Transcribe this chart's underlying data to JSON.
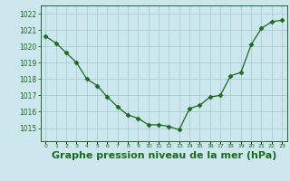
{
  "x": [
    0,
    1,
    2,
    3,
    4,
    5,
    6,
    7,
    8,
    9,
    10,
    11,
    12,
    13,
    14,
    15,
    16,
    17,
    18,
    19,
    20,
    21,
    22,
    23
  ],
  "y": [
    1020.6,
    1020.2,
    1019.6,
    1019.0,
    1018.0,
    1017.6,
    1016.9,
    1016.3,
    1015.8,
    1015.6,
    1015.2,
    1015.2,
    1015.1,
    1014.9,
    1016.2,
    1016.4,
    1016.9,
    1017.0,
    1018.2,
    1018.4,
    1020.1,
    1021.1,
    1021.5,
    1021.6
  ],
  "line_color": "#1a6b1a",
  "marker": "D",
  "marker_size": 2.5,
  "bg_color": "#cce8ee",
  "grid_color": "#aacdd4",
  "title": "Graphe pression niveau de la mer (hPa)",
  "title_fontsize": 8,
  "title_color": "#1a6b1a",
  "tick_color": "#1a6b1a",
  "ylim_min": 1014.2,
  "ylim_max": 1022.5,
  "ytick_values": [
    1015,
    1016,
    1017,
    1018,
    1019,
    1020,
    1021,
    1022
  ],
  "xtick_values": [
    0,
    1,
    2,
    3,
    4,
    5,
    6,
    7,
    8,
    9,
    10,
    11,
    12,
    13,
    14,
    15,
    16,
    17,
    18,
    19,
    20,
    21,
    22,
    23
  ]
}
